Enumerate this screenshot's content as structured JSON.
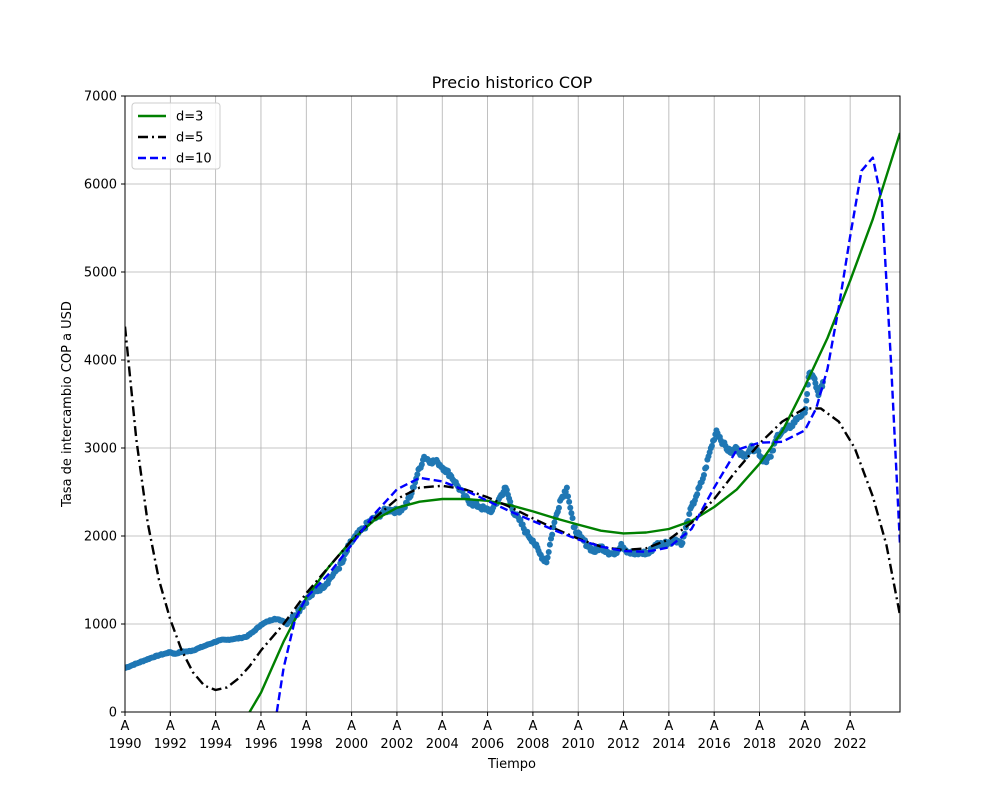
{
  "chart_data": {
    "type": "scatter",
    "title": "Precio historico COP",
    "xlabel": "Tiempo",
    "ylabel": "Tasa de intercambio COP a USD",
    "xlim": [
      1990,
      2024.2
    ],
    "ylim": [
      0,
      7000
    ],
    "x_ticks": [
      1990,
      1992,
      1994,
      1996,
      1998,
      2000,
      2002,
      2004,
      2006,
      2008,
      2010,
      2012,
      2014,
      2016,
      2018,
      2020,
      2022
    ],
    "x_tick_labels": [
      "1990",
      "1992",
      "1994",
      "1996",
      "1998",
      "2000",
      "2002",
      "2004",
      "2006",
      "2008",
      "2010",
      "2012",
      "2014",
      "2016",
      "2018",
      "2020",
      "2022"
    ],
    "x_tick_prefix": "A",
    "y_ticks": [
      0,
      1000,
      2000,
      3000,
      4000,
      5000,
      6000,
      7000
    ],
    "y_tick_labels": [
      "0",
      "1000",
      "2000",
      "3000",
      "4000",
      "5000",
      "6000",
      "7000"
    ],
    "grid": true,
    "legend_position": "top-left",
    "scatter": {
      "color": "#1f77b4",
      "points": [
        [
          1990.0,
          500
        ],
        [
          1990.3,
          530
        ],
        [
          1990.6,
          560
        ],
        [
          1990.9,
          590
        ],
        [
          1991.2,
          620
        ],
        [
          1991.5,
          645
        ],
        [
          1991.8,
          665
        ],
        [
          1992.0,
          680
        ],
        [
          1992.2,
          660
        ],
        [
          1992.5,
          685
        ],
        [
          1992.8,
          690
        ],
        [
          1993.0,
          700
        ],
        [
          1993.3,
          730
        ],
        [
          1993.6,
          760
        ],
        [
          1993.9,
          790
        ],
        [
          1994.2,
          815
        ],
        [
          1994.5,
          820
        ],
        [
          1994.8,
          830
        ],
        [
          1995.1,
          840
        ],
        [
          1995.4,
          860
        ],
        [
          1995.7,
          920
        ],
        [
          1996.0,
          990
        ],
        [
          1996.3,
          1030
        ],
        [
          1996.6,
          1060
        ],
        [
          1996.9,
          1040
        ],
        [
          1997.2,
          1020
        ],
        [
          1997.5,
          1100
        ],
        [
          1997.8,
          1200
        ],
        [
          1998.1,
          1300
        ],
        [
          1998.4,
          1370
        ],
        [
          1998.7,
          1420
        ],
        [
          1999.0,
          1500
        ],
        [
          1999.3,
          1600
        ],
        [
          1999.6,
          1700
        ],
        [
          1999.9,
          1900
        ],
        [
          2000.2,
          2000
        ],
        [
          2000.5,
          2080
        ],
        [
          2000.8,
          2170
        ],
        [
          2001.1,
          2210
        ],
        [
          2001.4,
          2280
        ],
        [
          2001.7,
          2300
        ],
        [
          2002.0,
          2280
        ],
        [
          2002.3,
          2320
        ],
        [
          2002.6,
          2450
        ],
        [
          2002.9,
          2700
        ],
        [
          2003.2,
          2900
        ],
        [
          2003.5,
          2850
        ],
        [
          2003.8,
          2840
        ],
        [
          2004.1,
          2760
        ],
        [
          2004.4,
          2680
        ],
        [
          2004.7,
          2560
        ],
        [
          2005.0,
          2440
        ],
        [
          2005.3,
          2370
        ],
        [
          2005.6,
          2340
        ],
        [
          2005.9,
          2300
        ],
        [
          2006.2,
          2290
        ],
        [
          2006.5,
          2420
        ],
        [
          2006.8,
          2550
        ],
        [
          2007.1,
          2300
        ],
        [
          2007.4,
          2180
        ],
        [
          2007.7,
          2040
        ],
        [
          2008.0,
          1950
        ],
        [
          2008.3,
          1800
        ],
        [
          2008.6,
          1700
        ],
        [
          2008.9,
          2100
        ],
        [
          2009.2,
          2400
        ],
        [
          2009.5,
          2550
        ],
        [
          2009.8,
          2100
        ],
        [
          2010.1,
          1980
        ],
        [
          2010.4,
          1900
        ],
        [
          2010.7,
          1820
        ],
        [
          2011.0,
          1880
        ],
        [
          2011.3,
          1820
        ],
        [
          2011.6,
          1790
        ],
        [
          2011.9,
          1910
        ],
        [
          2012.2,
          1820
        ],
        [
          2012.5,
          1790
        ],
        [
          2012.8,
          1810
        ],
        [
          2013.1,
          1800
        ],
        [
          2013.4,
          1900
        ],
        [
          2013.7,
          1910
        ],
        [
          2014.0,
          1930
        ],
        [
          2014.3,
          1960
        ],
        [
          2014.6,
          1920
        ],
        [
          2014.9,
          2250
        ],
        [
          2015.2,
          2450
        ],
        [
          2015.5,
          2650
        ],
        [
          2015.8,
          2950
        ],
        [
          2016.1,
          3200
        ],
        [
          2016.4,
          3050
        ],
        [
          2016.7,
          2950
        ],
        [
          2017.0,
          3000
        ],
        [
          2017.3,
          2900
        ],
        [
          2017.6,
          3000
        ],
        [
          2017.9,
          2980
        ],
        [
          2018.2,
          2850
        ],
        [
          2018.5,
          2900
        ],
        [
          2018.8,
          3150
        ],
        [
          2019.1,
          3200
        ],
        [
          2019.4,
          3250
        ],
        [
          2019.7,
          3350
        ],
        [
          2020.0,
          3400
        ],
        [
          2020.2,
          3850
        ],
        [
          2020.4,
          3800
        ],
        [
          2020.6,
          3600
        ],
        [
          2020.8,
          3750
        ]
      ]
    },
    "series": [
      {
        "name": "d=3",
        "color": "#008000",
        "dash": "solid",
        "x": [
          1995.5,
          1996.0,
          1997.0,
          1998.0,
          1999.0,
          2000.0,
          2001.0,
          2002.0,
          2003.0,
          2004.0,
          2005.0,
          2006.0,
          2007.0,
          2008.0,
          2009.0,
          2010.0,
          2011.0,
          2012.0,
          2013.0,
          2014.0,
          2015.0,
          2016.0,
          2017.0,
          2018.0,
          2019.0,
          2020.0,
          2021.0,
          2022.0,
          2023.0,
          2024.2
        ],
        "y": [
          0,
          220,
          800,
          1300,
          1650,
          1950,
          2180,
          2320,
          2390,
          2420,
          2420,
          2400,
          2350,
          2280,
          2200,
          2130,
          2060,
          2030,
          2040,
          2080,
          2170,
          2330,
          2530,
          2820,
          3190,
          3700,
          4250,
          4900,
          5600,
          6580
        ]
      },
      {
        "name": "d=5",
        "color": "#000000",
        "dash": "dashdot",
        "x": [
          1990.0,
          1990.5,
          1991.0,
          1991.5,
          1992.0,
          1992.5,
          1993.0,
          1993.5,
          1994.0,
          1994.5,
          1995.0,
          1995.5,
          1996.0,
          1997.0,
          1998.0,
          1999.0,
          2000.0,
          2001.0,
          2002.0,
          2003.0,
          2004.0,
          2005.0,
          2006.0,
          2007.0,
          2008.0,
          2009.0,
          2010.0,
          2011.0,
          2012.0,
          2013.0,
          2014.0,
          2015.0,
          2016.0,
          2017.0,
          2018.0,
          2019.0,
          2020.0,
          2020.7,
          2021.5,
          2022.2,
          2023.0,
          2023.6,
          2024.2
        ],
        "y": [
          4380,
          3100,
          2150,
          1500,
          1050,
          700,
          450,
          300,
          250,
          280,
          380,
          520,
          700,
          1000,
          1350,
          1650,
          1950,
          2200,
          2420,
          2550,
          2570,
          2530,
          2440,
          2330,
          2200,
          2080,
          1970,
          1880,
          1840,
          1860,
          1960,
          2150,
          2420,
          2750,
          3050,
          3300,
          3450,
          3450,
          3300,
          3000,
          2450,
          1900,
          1100
        ]
      },
      {
        "name": "d=10",
        "color": "#0000ff",
        "dash": "dashed",
        "x": [
          1996.7,
          1997.0,
          1997.5,
          1998.0,
          1999.0,
          2000.0,
          2001.0,
          2002.0,
          2003.0,
          2004.0,
          2005.0,
          2006.0,
          2007.0,
          2008.0,
          2009.0,
          2010.0,
          2011.0,
          2012.0,
          2013.0,
          2014.0,
          2015.0,
          2016.0,
          2017.0,
          2018.0,
          2019.0,
          2020.0,
          2020.5,
          2021.0,
          2021.5,
          2022.0,
          2022.5,
          2023.0,
          2023.4,
          2023.8,
          2024.2
        ],
        "y": [
          0,
          500,
          1050,
          1300,
          1570,
          1900,
          2250,
          2530,
          2660,
          2620,
          2520,
          2400,
          2280,
          2170,
          2060,
          1960,
          1880,
          1830,
          1820,
          1870,
          2080,
          2550,
          2980,
          3060,
          3070,
          3200,
          3450,
          3900,
          4600,
          5400,
          6150,
          6300,
          5800,
          4000,
          1900
        ]
      }
    ]
  }
}
